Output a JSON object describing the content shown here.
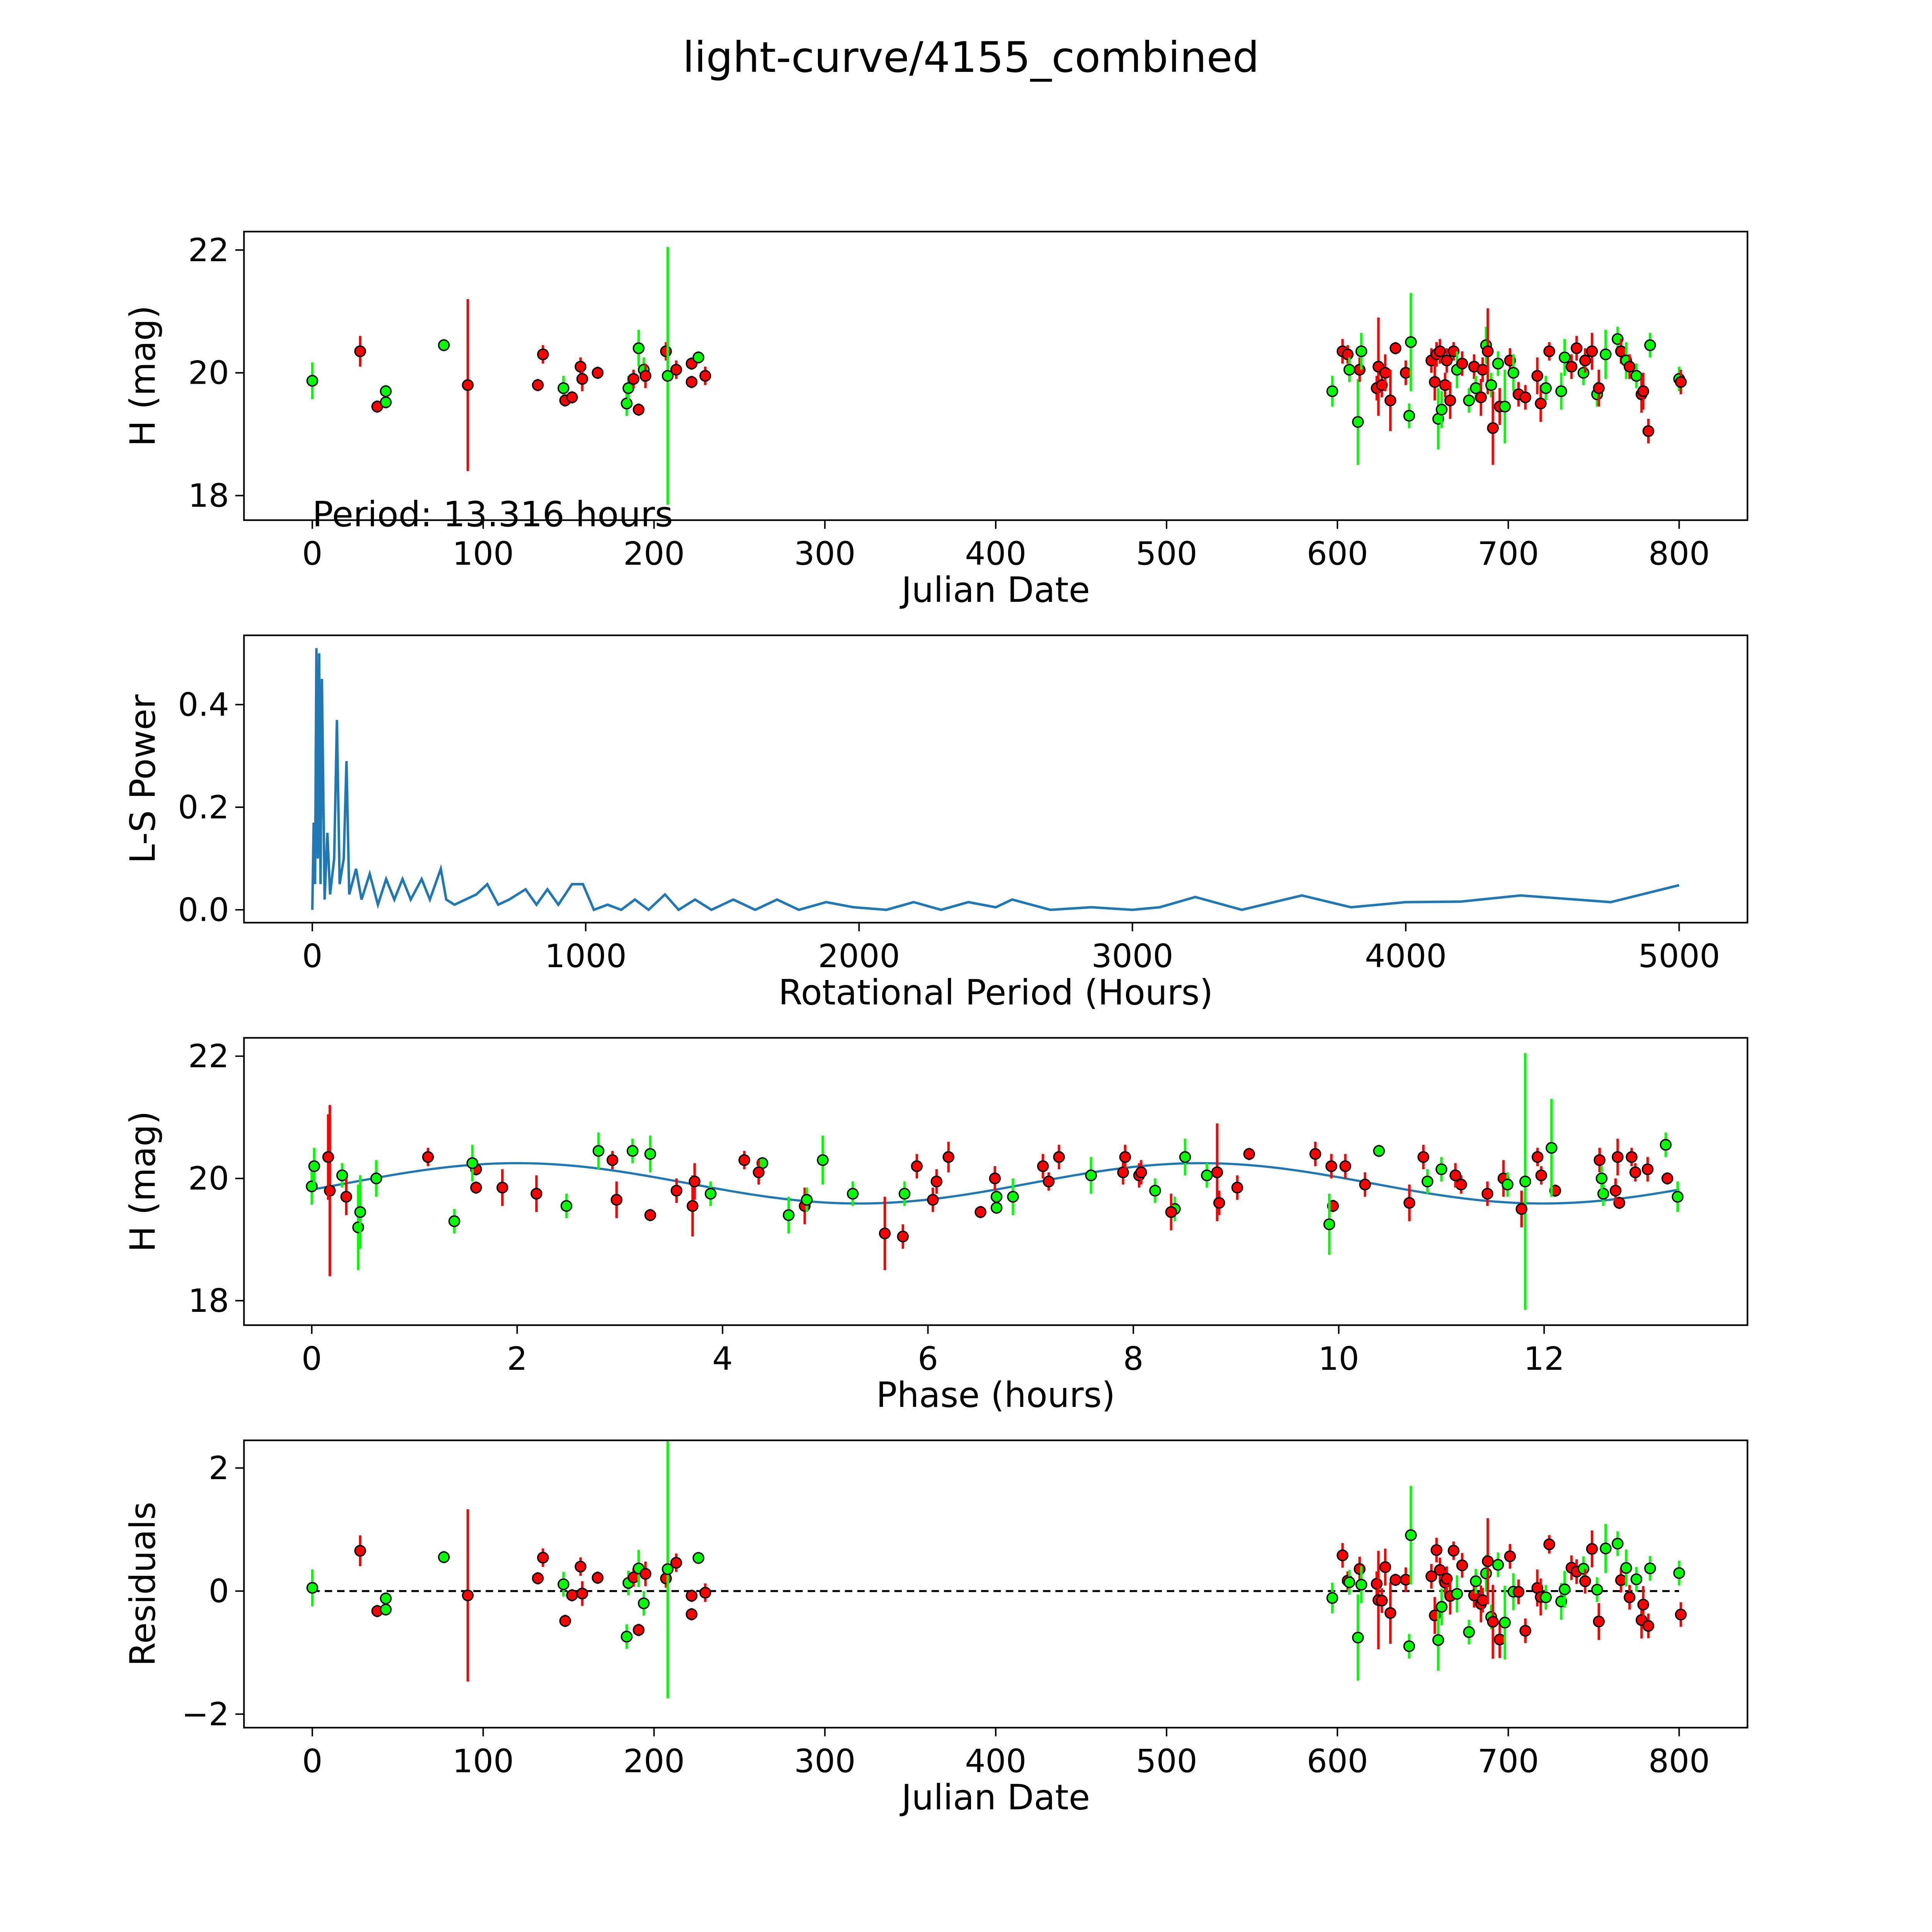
{
  "title": "light-curve/4155_combined",
  "colors": {
    "band_r": "#ff0000",
    "band_g": "#00ff00",
    "model": "#1f77b4",
    "edge": "#000000"
  },
  "chart_data": [
    {
      "type": "scatter",
      "id": "lightcurve",
      "xlabel": "Julian Date",
      "ylabel": "H (mag)",
      "xlim": [
        -40,
        840
      ],
      "ylim": [
        17.6,
        22.3
      ],
      "xticks": [
        0,
        100,
        200,
        300,
        400,
        500,
        600,
        700,
        800
      ],
      "yticks": [
        18,
        20,
        22
      ],
      "annotation": "Period: 13.316 hours",
      "points": [
        [
          0,
          19.87,
          0.3,
          "g"
        ],
        [
          28,
          20.35,
          0.25,
          "r"
        ],
        [
          38,
          19.45,
          0.1,
          "r"
        ],
        [
          43,
          19.7,
          0.1,
          "g"
        ],
        [
          43,
          19.52,
          0.1,
          "g"
        ],
        [
          77,
          20.45,
          0.1,
          "g"
        ],
        [
          91,
          19.8,
          1.4,
          "r"
        ],
        [
          132,
          19.8,
          0.1,
          "r"
        ],
        [
          135,
          20.3,
          0.15,
          "r"
        ],
        [
          147,
          19.75,
          0.2,
          "g"
        ],
        [
          148,
          19.55,
          0.1,
          "r"
        ],
        [
          152,
          19.6,
          0.1,
          "r"
        ],
        [
          157,
          20.1,
          0.15,
          "r"
        ],
        [
          158,
          19.9,
          0.2,
          "r"
        ],
        [
          167,
          20.0,
          0.1,
          "r"
        ],
        [
          184,
          19.5,
          0.2,
          "g"
        ],
        [
          185,
          19.75,
          0.2,
          "g"
        ],
        [
          188,
          19.9,
          0.15,
          "r"
        ],
        [
          191,
          20.4,
          0.3,
          "g"
        ],
        [
          191,
          19.4,
          0.1,
          "r"
        ],
        [
          194,
          20.05,
          0.2,
          "g"
        ],
        [
          195,
          19.95,
          0.2,
          "r"
        ],
        [
          207,
          20.35,
          0.15,
          "r"
        ],
        [
          208,
          19.95,
          2.1,
          "g"
        ],
        [
          213,
          20.05,
          0.15,
          "r"
        ],
        [
          222,
          20.15,
          0.1,
          "r"
        ],
        [
          222,
          19.85,
          0.1,
          "r"
        ],
        [
          226,
          20.25,
          0.1,
          "g"
        ],
        [
          230,
          19.95,
          0.15,
          "r"
        ],
        [
          597,
          19.7,
          0.25,
          "g"
        ],
        [
          603,
          20.35,
          0.2,
          "r"
        ],
        [
          606,
          20.3,
          0.15,
          "r"
        ],
        [
          607,
          20.05,
          0.2,
          "g"
        ],
        [
          612,
          19.2,
          0.7,
          "g"
        ],
        [
          613,
          20.05,
          0.2,
          "r"
        ],
        [
          614,
          20.35,
          0.3,
          "g"
        ],
        [
          623,
          19.75,
          0.2,
          "r"
        ],
        [
          624,
          20.1,
          0.8,
          "r"
        ],
        [
          626,
          19.8,
          0.2,
          "r"
        ],
        [
          628,
          20.0,
          0.3,
          "r"
        ],
        [
          631,
          19.55,
          0.5,
          "r"
        ],
        [
          634,
          20.4,
          0.1,
          "r"
        ],
        [
          640,
          20.0,
          0.2,
          "r"
        ],
        [
          642,
          19.3,
          0.2,
          "g"
        ],
        [
          643,
          20.5,
          0.8,
          "g"
        ],
        [
          655,
          20.2,
          0.2,
          "r"
        ],
        [
          657,
          19.85,
          0.3,
          "r"
        ],
        [
          658,
          20.3,
          0.2,
          "r"
        ],
        [
          659,
          19.25,
          0.5,
          "g"
        ],
        [
          660,
          20.35,
          0.2,
          "r"
        ],
        [
          661,
          19.4,
          0.3,
          "g"
        ],
        [
          663,
          19.8,
          0.2,
          "r"
        ],
        [
          664,
          20.2,
          0.2,
          "r"
        ],
        [
          666,
          19.55,
          0.3,
          "r"
        ],
        [
          668,
          20.35,
          0.15,
          "r"
        ],
        [
          670,
          20.05,
          0.3,
          "g"
        ],
        [
          673,
          20.15,
          0.2,
          "r"
        ],
        [
          677,
          19.55,
          0.2,
          "g"
        ],
        [
          680,
          20.1,
          0.2,
          "r"
        ],
        [
          681,
          19.75,
          0.2,
          "g"
        ],
        [
          684,
          19.6,
          0.3,
          "r"
        ],
        [
          685,
          20.05,
          0.2,
          "r"
        ],
        [
          687,
          20.45,
          0.3,
          "g"
        ],
        [
          688,
          20.35,
          0.7,
          "r"
        ],
        [
          690,
          19.8,
          0.2,
          "g"
        ],
        [
          691,
          19.1,
          0.6,
          "r"
        ],
        [
          694,
          20.15,
          0.2,
          "g"
        ],
        [
          695,
          19.45,
          0.3,
          "r"
        ],
        [
          698,
          19.45,
          0.6,
          "g"
        ],
        [
          701,
          20.2,
          0.2,
          "r"
        ],
        [
          703,
          20.0,
          0.3,
          "g"
        ],
        [
          706,
          19.65,
          0.2,
          "r"
        ],
        [
          710,
          19.6,
          0.2,
          "r"
        ],
        [
          717,
          19.95,
          0.3,
          "r"
        ],
        [
          719,
          19.5,
          0.3,
          "r"
        ],
        [
          722,
          19.75,
          0.2,
          "g"
        ],
        [
          724,
          20.35,
          0.15,
          "r"
        ],
        [
          731,
          19.7,
          0.3,
          "g"
        ],
        [
          733,
          20.25,
          0.3,
          "g"
        ],
        [
          737,
          20.1,
          0.2,
          "r"
        ],
        [
          740,
          20.4,
          0.2,
          "r"
        ],
        [
          744,
          20.0,
          0.2,
          "g"
        ],
        [
          745,
          20.2,
          0.2,
          "r"
        ],
        [
          749,
          20.35,
          0.3,
          "r"
        ],
        [
          752,
          19.65,
          0.2,
          "g"
        ],
        [
          753,
          19.75,
          0.3,
          "r"
        ],
        [
          757,
          20.3,
          0.4,
          "g"
        ],
        [
          764,
          20.55,
          0.2,
          "g"
        ],
        [
          766,
          20.35,
          0.2,
          "r"
        ],
        [
          769,
          20.2,
          0.3,
          "g"
        ],
        [
          771,
          20.1,
          0.2,
          "r"
        ],
        [
          775,
          19.95,
          0.2,
          "g"
        ],
        [
          778,
          19.65,
          0.3,
          "r"
        ],
        [
          779,
          19.7,
          0.3,
          "r"
        ],
        [
          782,
          19.05,
          0.2,
          "r"
        ],
        [
          783,
          20.45,
          0.2,
          "g"
        ],
        [
          800,
          19.9,
          0.2,
          "g"
        ],
        [
          801,
          19.85,
          0.2,
          "r"
        ]
      ]
    },
    {
      "type": "line",
      "id": "periodogram",
      "xlabel": "Rotational Period (Hours)",
      "ylabel": "L-S Power",
      "xlim": [
        -250,
        5250
      ],
      "ylim": [
        -0.025,
        0.535
      ],
      "xticks": [
        0,
        1000,
        2000,
        3000,
        4000,
        5000
      ],
      "yticks": [
        0.0,
        0.2,
        0.4
      ],
      "ytick_labels": [
        "0.0",
        "0.2",
        "0.4"
      ],
      "x": [
        0,
        5,
        10,
        15,
        20,
        25,
        30,
        35,
        45,
        55,
        65,
        80,
        90,
        100,
        115,
        125,
        135,
        160,
        180,
        210,
        240,
        270,
        300,
        330,
        360,
        400,
        430,
        470,
        490,
        520,
        560,
        600,
        640,
        680,
        720,
        780,
        820,
        860,
        900,
        950,
        990,
        1030,
        1080,
        1130,
        1180,
        1230,
        1290,
        1340,
        1400,
        1460,
        1540,
        1620,
        1700,
        1780,
        1880,
        1980,
        2100,
        2200,
        2300,
        2400,
        2500,
        2560,
        2700,
        2850,
        3000,
        3100,
        3230,
        3400,
        3620,
        3800,
        4000,
        4200,
        4420,
        4750,
        5000
      ],
      "y": [
        0,
        0.17,
        0.05,
        0.51,
        0.1,
        0.5,
        0.05,
        0.45,
        0.02,
        0.15,
        0.03,
        0.1,
        0.37,
        0.05,
        0.1,
        0.29,
        0.03,
        0.08,
        0.02,
        0.07,
        0.01,
        0.06,
        0.02,
        0.06,
        0.02,
        0.06,
        0.02,
        0.08,
        0.02,
        0.01,
        0.02,
        0.03,
        0.05,
        0.01,
        0.02,
        0.04,
        0.01,
        0.04,
        0.01,
        0.05,
        0.05,
        0.0,
        0.01,
        0.0,
        0.02,
        0.0,
        0.03,
        0.0,
        0.02,
        0.0,
        0.02,
        0.0,
        0.02,
        0.0,
        0.015,
        0.005,
        0.0,
        0.015,
        0.0,
        0.015,
        0.005,
        0.02,
        0.0,
        0.005,
        0.0,
        0.005,
        0.025,
        0.0,
        0.028,
        0.005,
        0.015,
        0.016,
        0.028,
        0.015,
        0.048
      ]
    },
    {
      "type": "scatter",
      "id": "phased",
      "xlabel": "Phase (hours)",
      "ylabel": "H (mag)",
      "xlim": [
        -0.66,
        13.98
      ],
      "ylim": [
        17.6,
        22.3
      ],
      "xticks": [
        0,
        2,
        4,
        6,
        8,
        10,
        12
      ],
      "yticks": [
        18,
        20,
        22
      ],
      "period_hours": 13.316,
      "model": {
        "mean": 19.92,
        "amplitude": 0.33,
        "peak_phase": 2.0
      }
    },
    {
      "type": "scatter",
      "id": "residuals",
      "xlabel": "Julian Date",
      "ylabel": "Residuals",
      "xlim": [
        -40,
        840
      ],
      "ylim": [
        -2.22,
        2.45
      ],
      "xticks": [
        0,
        100,
        200,
        300,
        400,
        500,
        600,
        700,
        800
      ],
      "yticks": [
        -2,
        0,
        2
      ],
      "ytick_labels": [
        "−2",
        "0",
        "2"
      ]
    }
  ]
}
